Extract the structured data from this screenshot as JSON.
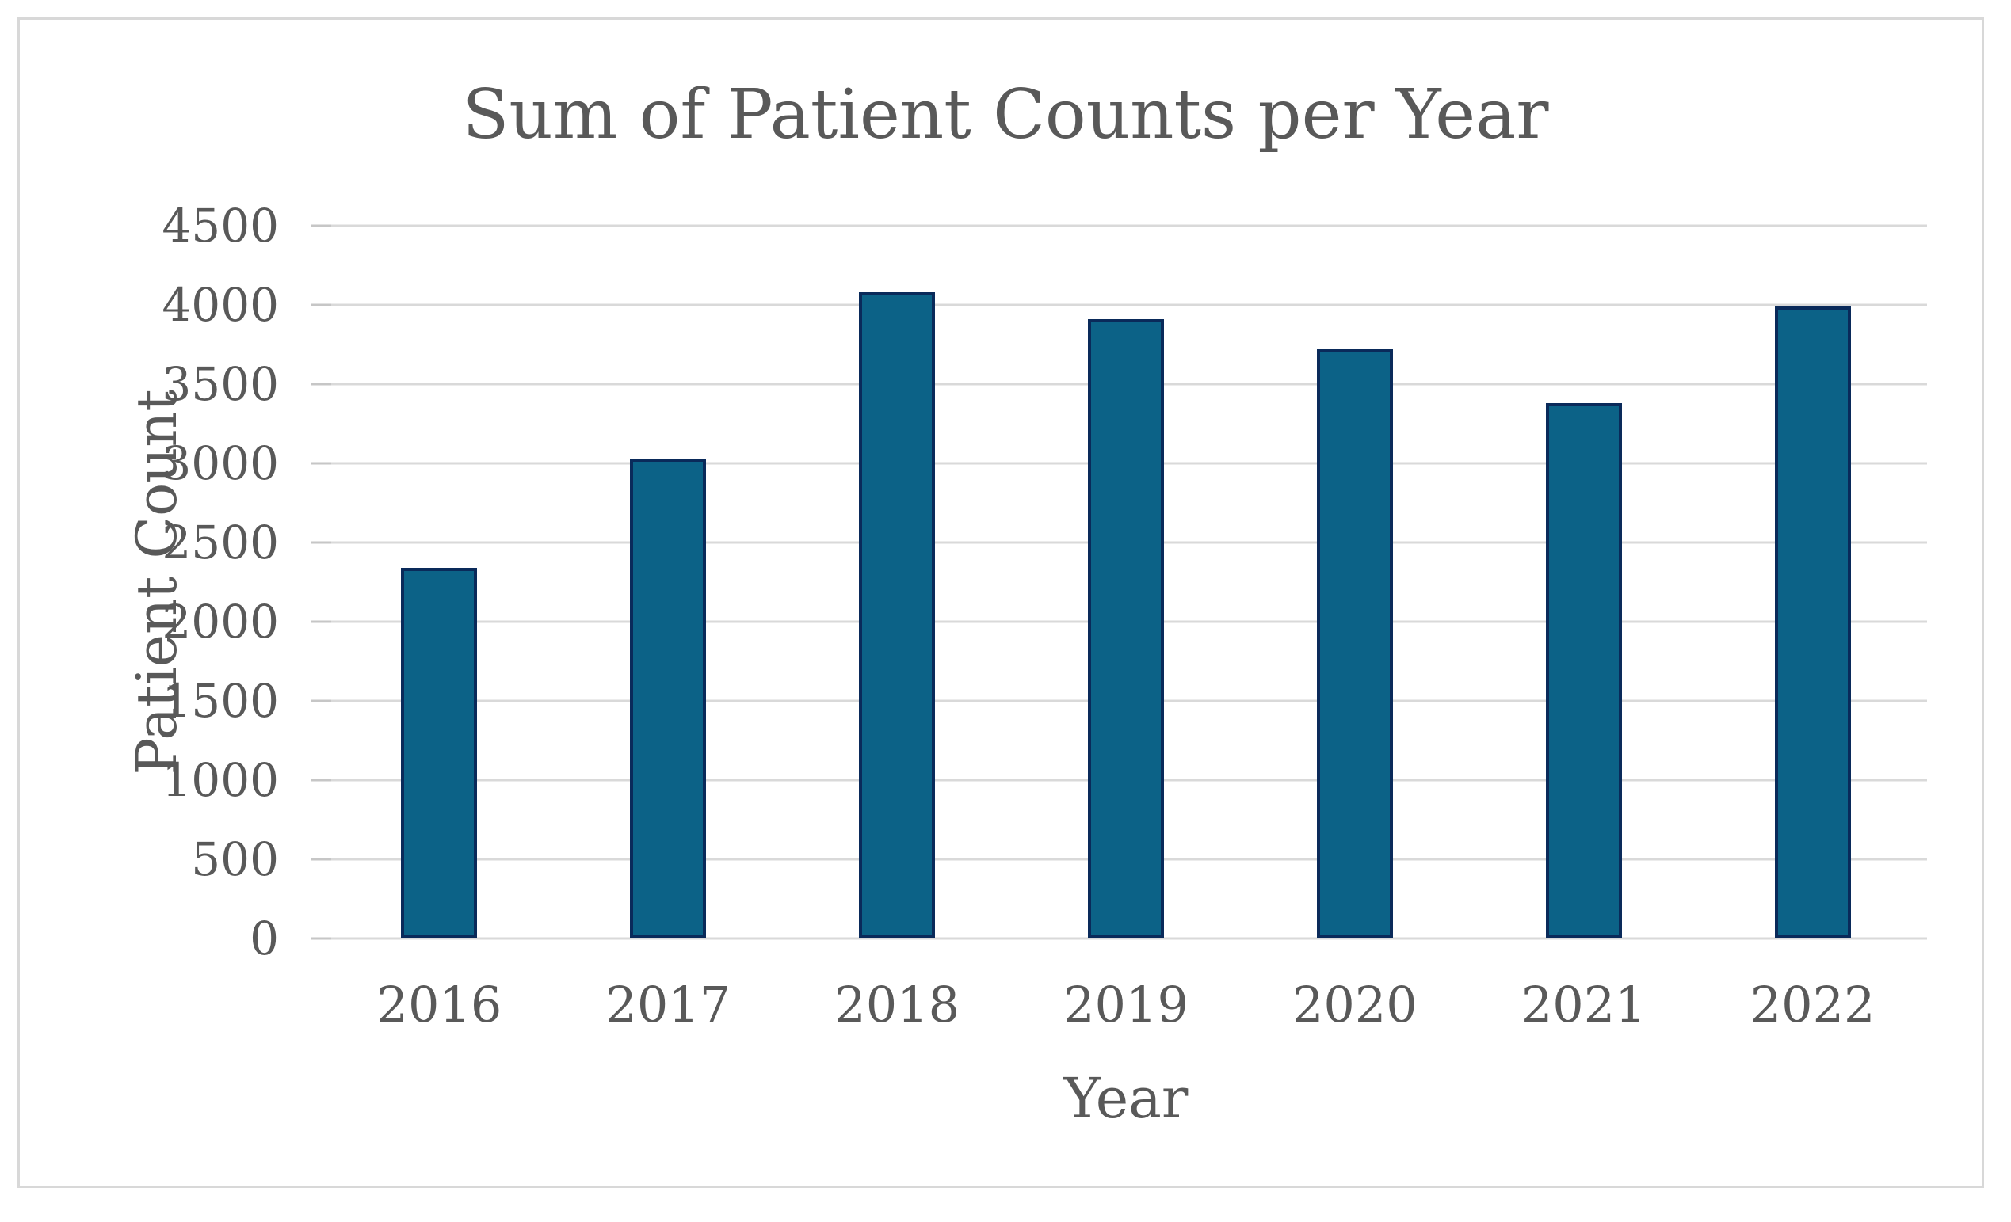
{
  "chart_data": {
    "type": "bar",
    "title": "Sum of Patient Counts per Year",
    "xlabel": "Year",
    "ylabel": "Patient Count",
    "categories": [
      "2016",
      "2017",
      "2018",
      "2019",
      "2020",
      "2021",
      "2022"
    ],
    "values": [
      2340,
      3030,
      4080,
      3910,
      3720,
      3380,
      3990
    ],
    "ylim": [
      0,
      4500
    ],
    "ytick_interval": 500,
    "ytick_labels": [
      "0",
      "500",
      "1000",
      "1500",
      "2000",
      "2500",
      "3000",
      "3500",
      "4000",
      "4500"
    ],
    "grid": "horizontal",
    "legend": "none",
    "colors": {
      "bar_fill": "#0C6287",
      "bar_border": "#0A2A5A",
      "gridline": "#D9D9D9",
      "tick_mark": "#C6C6C6",
      "text": "#595959",
      "frame_border": "#D8D8D8",
      "background": "#FFFFFF"
    }
  }
}
